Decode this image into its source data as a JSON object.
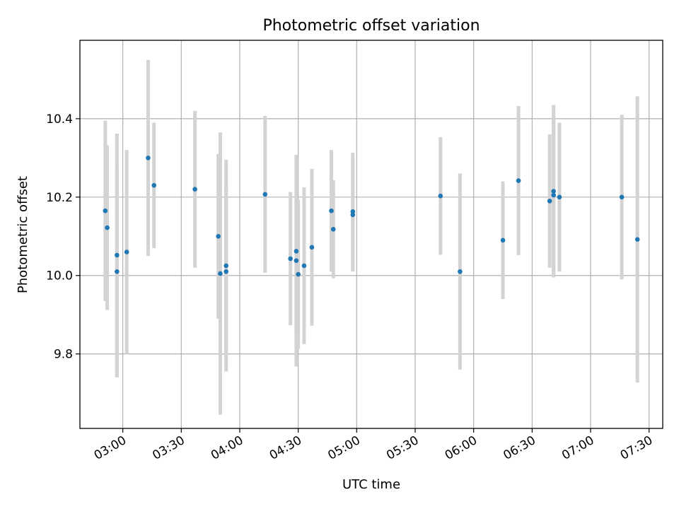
{
  "chart_data": {
    "type": "scatter",
    "title": "Photometric offset variation",
    "xlabel": "UTC time",
    "ylabel": "Photometric offset",
    "grid": true,
    "x_axis_type": "time",
    "xlim": [
      "02:38",
      "07:37"
    ],
    "ylim": [
      9.61,
      10.6
    ],
    "x_ticks": [
      "03:00",
      "03:30",
      "04:00",
      "04:30",
      "05:00",
      "05:30",
      "06:00",
      "06:30",
      "07:00",
      "07:30"
    ],
    "y_ticks": [
      9.8,
      10.0,
      10.2,
      10.4
    ],
    "y_tick_labels": [
      "9.8",
      "10.0",
      "10.2",
      "10.4"
    ],
    "point_color": "#1f77b4",
    "errorbar_color": "#d3d3d3",
    "series": [
      {
        "points": [
          {
            "t": "02:51",
            "y": 10.165,
            "err": 0.23
          },
          {
            "t": "02:52",
            "y": 10.122,
            "err": 0.21
          },
          {
            "t": "02:57",
            "y": 10.052,
            "err": 0.31
          },
          {
            "t": "02:57",
            "y": 10.01,
            "err": 0.27
          },
          {
            "t": "03:02",
            "y": 10.06,
            "err": 0.26
          },
          {
            "t": "03:13",
            "y": 10.3,
            "err": 0.25
          },
          {
            "t": "03:16",
            "y": 10.23,
            "err": 0.16
          },
          {
            "t": "03:37",
            "y": 10.22,
            "err": 0.2
          },
          {
            "t": "03:49",
            "y": 10.1,
            "err": 0.21
          },
          {
            "t": "03:50",
            "y": 10.005,
            "err": 0.36
          },
          {
            "t": "03:53",
            "y": 10.025,
            "err": 0.27
          },
          {
            "t": "03:53",
            "y": 10.01,
            "err": 0.22
          },
          {
            "t": "04:13",
            "y": 10.207,
            "err": 0.2
          },
          {
            "t": "04:26",
            "y": 10.043,
            "err": 0.17
          },
          {
            "t": "04:29",
            "y": 10.038,
            "err": 0.27
          },
          {
            "t": "04:29",
            "y": 10.062,
            "err": 0.2
          },
          {
            "t": "04:30",
            "y": 10.003,
            "err": 0.19
          },
          {
            "t": "04:33",
            "y": 10.025,
            "err": 0.2
          },
          {
            "t": "04:37",
            "y": 10.072,
            "err": 0.2
          },
          {
            "t": "04:47",
            "y": 10.165,
            "err": 0.155
          },
          {
            "t": "04:48",
            "y": 10.118,
            "err": 0.125
          },
          {
            "t": "04:58",
            "y": 10.155,
            "err": 0.145
          },
          {
            "t": "04:58",
            "y": 10.163,
            "err": 0.15
          },
          {
            "t": "05:43",
            "y": 10.203,
            "err": 0.15
          },
          {
            "t": "05:53",
            "y": 10.01,
            "err": 0.25
          },
          {
            "t": "06:15",
            "y": 10.09,
            "err": 0.15
          },
          {
            "t": "06:23",
            "y": 10.242,
            "err": 0.19
          },
          {
            "t": "06:39",
            "y": 10.19,
            "err": 0.17
          },
          {
            "t": "06:41",
            "y": 10.215,
            "err": 0.22
          },
          {
            "t": "06:41",
            "y": 10.205,
            "err": 0.2
          },
          {
            "t": "06:44",
            "y": 10.2,
            "err": 0.19
          },
          {
            "t": "07:16",
            "y": 10.2,
            "err": 0.21
          },
          {
            "t": "07:24",
            "y": 10.092,
            "err": 0.365
          }
        ]
      }
    ]
  }
}
